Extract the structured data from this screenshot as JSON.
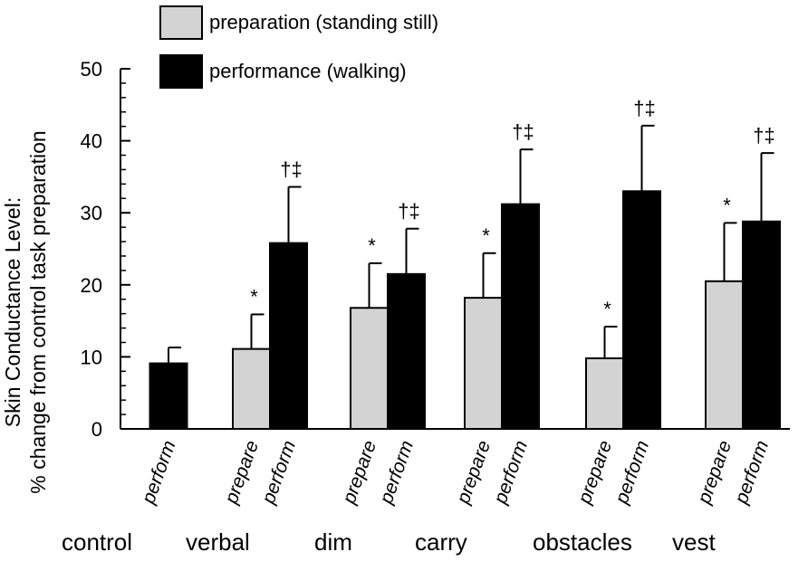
{
  "chart_data": {
    "type": "bar",
    "ylabel_line1": "Skin Conductance Level:",
    "ylabel_line2": "% change from control task preparation",
    "ylim": [
      0,
      50
    ],
    "yticks": [
      0,
      10,
      20,
      30,
      40,
      50
    ],
    "legend": [
      {
        "key": "prepare",
        "label": "preparation (standing still)",
        "color": "#d3d3d3"
      },
      {
        "key": "perform",
        "label": "performance (walking)",
        "color": "#000000"
      }
    ],
    "groups": [
      {
        "name": "control",
        "bars": [
          {
            "condition": "perform",
            "value": 9.1,
            "error": 2.2,
            "mark": ""
          }
        ]
      },
      {
        "name": "verbal",
        "bars": [
          {
            "condition": "prepare",
            "value": 11.1,
            "error": 4.8,
            "mark": "*"
          },
          {
            "condition": "perform",
            "value": 25.8,
            "error": 7.8,
            "mark": "†‡"
          }
        ]
      },
      {
        "name": "dim",
        "bars": [
          {
            "condition": "prepare",
            "value": 16.8,
            "error": 6.2,
            "mark": "*"
          },
          {
            "condition": "perform",
            "value": 21.5,
            "error": 6.3,
            "mark": "†‡"
          }
        ]
      },
      {
        "name": "carry",
        "bars": [
          {
            "condition": "prepare",
            "value": 18.2,
            "error": 6.2,
            "mark": "*"
          },
          {
            "condition": "perform",
            "value": 31.2,
            "error": 7.6,
            "mark": "†‡"
          }
        ]
      },
      {
        "name": "obstacles",
        "bars": [
          {
            "condition": "prepare",
            "value": 9.8,
            "error": 4.4,
            "mark": "*"
          },
          {
            "condition": "perform",
            "value": 33.0,
            "error": 9.1,
            "mark": "†‡"
          }
        ]
      },
      {
        "name": "vest",
        "bars": [
          {
            "condition": "prepare",
            "value": 20.5,
            "error": 8.1,
            "mark": "*"
          },
          {
            "condition": "perform",
            "value": 28.8,
            "error": 9.5,
            "mark": "†‡"
          }
        ]
      }
    ]
  }
}
